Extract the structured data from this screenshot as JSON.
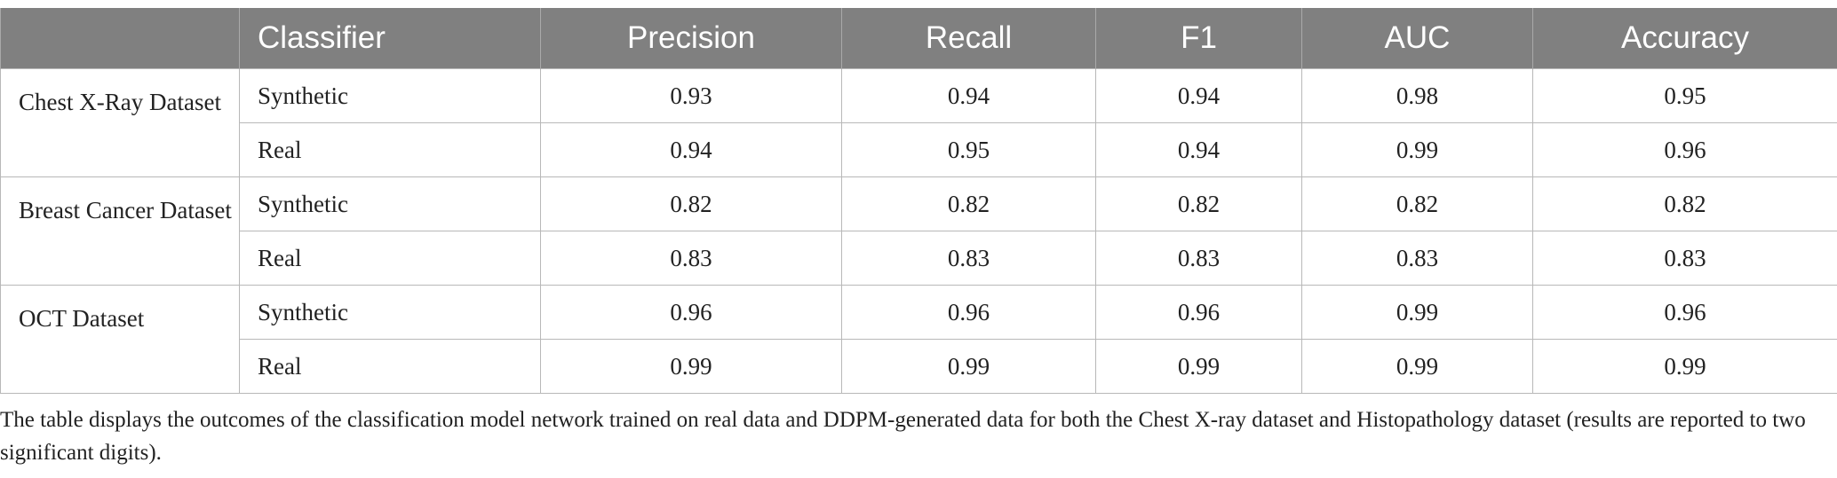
{
  "table": {
    "headers": [
      "",
      "Classifier",
      "Precision",
      "Recall",
      "F1",
      "AUC",
      "Accuracy"
    ],
    "groups": [
      {
        "dataset": "Chest X-Ray Dataset",
        "rows": [
          {
            "classifier": "Synthetic",
            "values": [
              "0.93",
              "0.94",
              "0.94",
              "0.98",
              "0.95"
            ]
          },
          {
            "classifier": "Real",
            "values": [
              "0.94",
              "0.95",
              "0.94",
              "0.99",
              "0.96"
            ]
          }
        ]
      },
      {
        "dataset": "Breast Cancer Dataset",
        "rows": [
          {
            "classifier": "Synthetic",
            "values": [
              "0.82",
              "0.82",
              "0.82",
              "0.82",
              "0.82"
            ]
          },
          {
            "classifier": "Real",
            "values": [
              "0.83",
              "0.83",
              "0.83",
              "0.83",
              "0.83"
            ]
          }
        ]
      },
      {
        "dataset": "OCT Dataset",
        "rows": [
          {
            "classifier": "Synthetic",
            "values": [
              "0.96",
              "0.96",
              "0.96",
              "0.99",
              "0.96"
            ]
          },
          {
            "classifier": "Real",
            "values": [
              "0.99",
              "0.99",
              "0.99",
              "0.99",
              "0.99"
            ]
          }
        ]
      }
    ]
  },
  "caption": "The table displays the outcomes of the classification model network trained on real data and DDPM-generated data for both the Chest X-ray dataset and Histopathology dataset (results are reported to two significant digits).",
  "colors": {
    "header_bg": "#808080",
    "header_text": "#ffffff",
    "border": "#b8b8b8"
  }
}
